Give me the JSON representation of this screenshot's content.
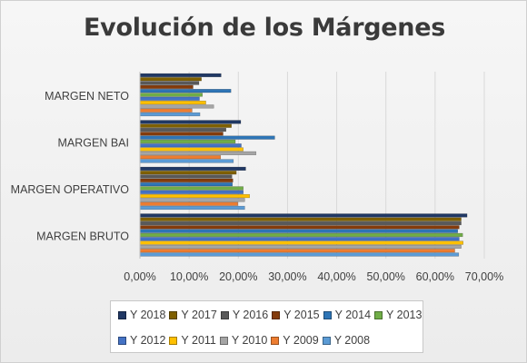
{
  "chart_data": {
    "type": "bar",
    "orientation": "horizontal",
    "title": "Evolución de los Márgenes",
    "xlabel": "",
    "ylabel": "",
    "xlim": [
      0,
      70
    ],
    "x_tick_labels": [
      "0,00%",
      "10,00%",
      "20,00%",
      "30,00%",
      "40,00%",
      "50,00%",
      "60,00%",
      "70,00%"
    ],
    "categories": [
      "MARGEN BRUTO",
      "MARGEN OPERATIVO",
      "MARGEN BAI",
      "MARGEN NETO"
    ],
    "grid": "vertical",
    "legend_position": "bottom",
    "series": [
      {
        "name": "Y 2018",
        "color": "#203864",
        "values": [
          66.5,
          21.5,
          20.5,
          16.5
        ]
      },
      {
        "name": "Y 2017",
        "color": "#7f6000",
        "values": [
          65.3,
          19.6,
          18.6,
          12.5
        ]
      },
      {
        "name": "Y 2016",
        "color": "#595959",
        "values": [
          65.3,
          18.7,
          17.5,
          12.0
        ]
      },
      {
        "name": "Y 2015",
        "color": "#843c0c",
        "values": [
          64.9,
          18.9,
          16.9,
          10.8
        ]
      },
      {
        "name": "Y 2014",
        "color": "#2e75b6",
        "values": [
          64.6,
          18.8,
          27.4,
          18.5
        ]
      },
      {
        "name": "Y 2013",
        "color": "#70ad47",
        "values": [
          65.6,
          21.0,
          19.4,
          12.7
        ]
      },
      {
        "name": "Y 2012",
        "color": "#4472c4",
        "values": [
          64.9,
          21.0,
          20.6,
          12.1
        ]
      },
      {
        "name": "Y 2011",
        "color": "#ffc000",
        "values": [
          65.7,
          22.3,
          21.0,
          13.4
        ]
      },
      {
        "name": "Y 2010",
        "color": "#a5a5a5",
        "values": [
          65.3,
          21.3,
          23.6,
          15.0
        ]
      },
      {
        "name": "Y 2009",
        "color": "#ed7d31",
        "values": [
          64.0,
          19.9,
          16.4,
          10.6
        ]
      },
      {
        "name": "Y 2008",
        "color": "#5b9bd5",
        "values": [
          64.8,
          21.3,
          19.0,
          12.2
        ]
      }
    ]
  }
}
